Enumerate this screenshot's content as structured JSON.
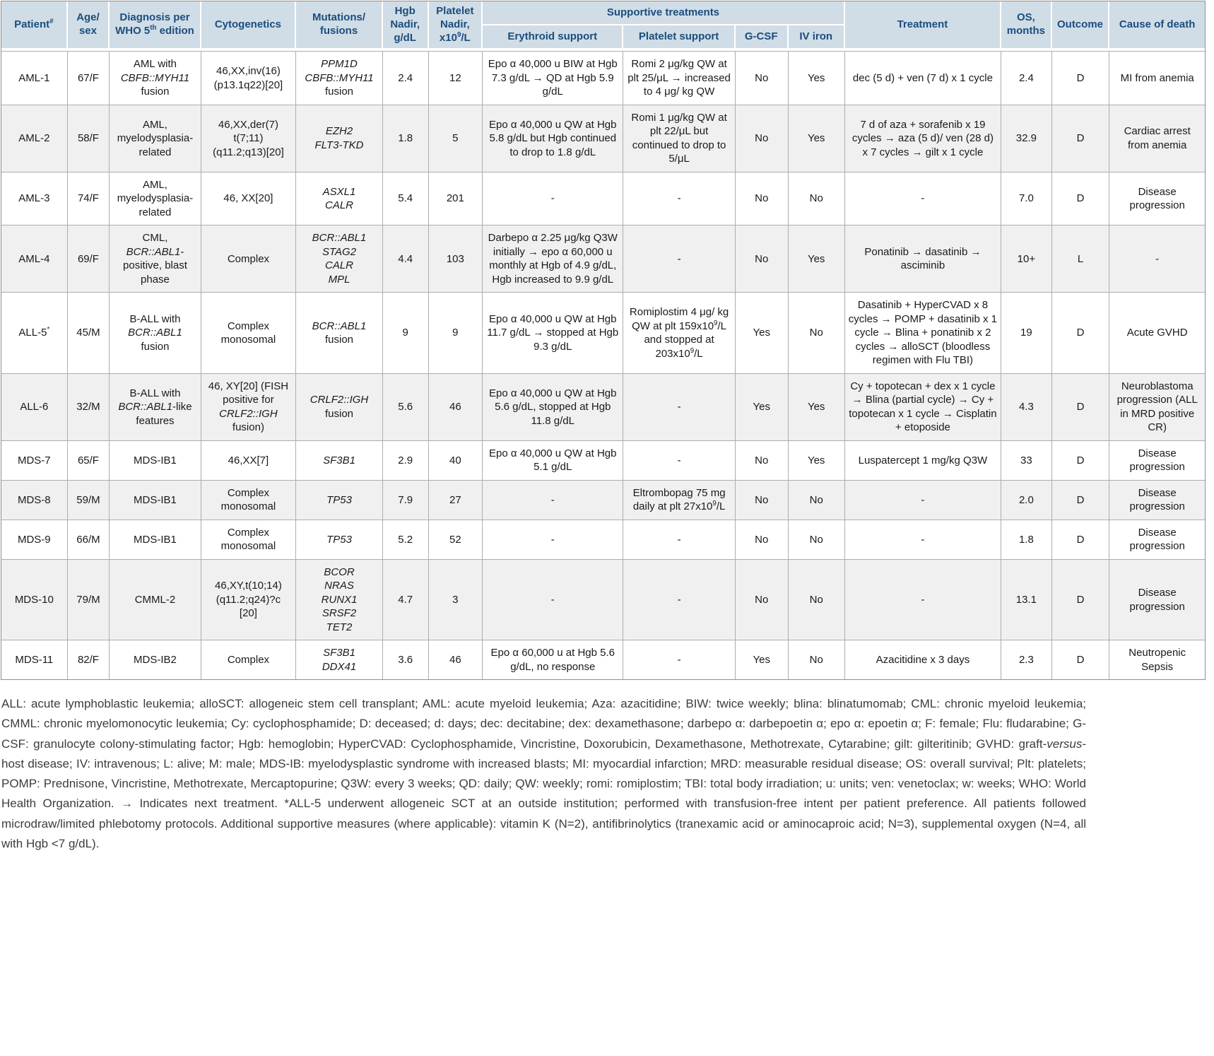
{
  "colors": {
    "header_bg": "#d0dde6",
    "header_text": "#1b4d7d",
    "grid": "#adadad",
    "outer_border": "#8f8f8f",
    "alt_row_bg": "#f0f0f0",
    "footnote_text": "#3c3c3c"
  },
  "table": {
    "header": {
      "patient": "Patient<sup>#</sup>",
      "age_sex": "Age/<br>sex",
      "diagnosis": "Diagnosis per WHO 5<sup>th</sup> edition",
      "cytogenetics": "Cytogenetics",
      "mutations": "Mutations/<br>fusions",
      "hgb_nadir": "Hgb Nadir, g/dL",
      "plt_nadir": "Platelet Nadir, x10<sup>9</sup>/L",
      "supportive": "Supportive treatments",
      "erythroid_support": "Erythroid support",
      "platelet_support": "Platelet support",
      "gcsf": "G-CSF",
      "iv_iron": "IV iron",
      "treatment": "Treatment",
      "os_months": "OS, months",
      "outcome": "Outcome",
      "cause_of_death": "Cause of death"
    },
    "columns_order": [
      "patient",
      "age_sex",
      "diagnosis",
      "cytogenetics",
      "mutations",
      "hgb_nadir",
      "plt_nadir",
      "erythroid_support",
      "platelet_support",
      "gcsf",
      "iv_iron",
      "treatment",
      "os_months",
      "outcome",
      "cause_of_death"
    ],
    "rows": [
      {
        "patient": "AML-1",
        "age_sex": "67/F",
        "diagnosis": "AML with <i>CBFB::MYH11</i> fusion",
        "cytogenetics": "46,XX,inv(16)<br>(p13.1q22)[20]",
        "mutations": "<i>PPM1D</i><br><i>CBFB::MYH11</i> fusion",
        "hgb_nadir": "2.4",
        "plt_nadir": "12",
        "erythroid_support": "Epo α 40,000 u BIW at Hgb 7.3 g/dL → QD at Hgb 5.9 g/dL",
        "platelet_support": "Romi 2 μg/kg QW at plt 25/μL → increased to 4 μg/ kg QW",
        "gcsf": "No",
        "iv_iron": "Yes",
        "treatment": "dec (5 d) + ven (7 d) x 1 cycle",
        "os_months": "2.4",
        "outcome": "D",
        "cause_of_death": "MI from anemia"
      },
      {
        "patient": "AML-2",
        "age_sex": "58/F",
        "diagnosis": "AML, myelodysplasia-related",
        "cytogenetics": "46,XX,der(7)<br>t(7;11)<br>(q11.2;q13)[20]",
        "mutations": "<i>EZH2</i><br><i>FLT3-TKD</i>",
        "hgb_nadir": "1.8",
        "plt_nadir": "5",
        "erythroid_support": "Epo α 40,000 u QW at Hgb 5.8 g/dL but Hgb continued to drop to 1.8 g/dL",
        "platelet_support": "Romi 1 μg/kg QW at plt 22/μL but continued to drop to 5/μL",
        "gcsf": "No",
        "iv_iron": "Yes",
        "treatment": "7 d of aza + sorafenib x 19 cycles → aza (5 d)/ ven (28 d) x 7 cycles → gilt x 1 cycle",
        "os_months": "32.9",
        "outcome": "D",
        "cause_of_death": "Cardiac arrest from anemia"
      },
      {
        "patient": "AML-3",
        "age_sex": "74/F",
        "diagnosis": "AML, myelodysplasia-related",
        "cytogenetics": "46, XX[20]",
        "mutations": "<i>ASXL1</i><br><i>CALR</i>",
        "hgb_nadir": "5.4",
        "plt_nadir": "201",
        "erythroid_support": "-",
        "platelet_support": "-",
        "gcsf": "No",
        "iv_iron": "No",
        "treatment": "-",
        "os_months": "7.0",
        "outcome": "D",
        "cause_of_death": "Disease progression"
      },
      {
        "patient": "AML-4",
        "age_sex": "69/F",
        "diagnosis": "CML, <i>BCR::ABL1</i>-positive, blast phase",
        "cytogenetics": "Complex",
        "mutations": "<i>BCR::ABL1</i><br><i>STAG2</i><br><i>CALR</i><br><i>MPL</i>",
        "hgb_nadir": "4.4",
        "plt_nadir": "103",
        "erythroid_support": "Darbepo α 2.25 μg/kg Q3W initially → epo α 60,000 u monthly at Hgb of 4.9 g/dL, Hgb increased to 9.9 g/dL",
        "platelet_support": "-",
        "gcsf": "No",
        "iv_iron": "Yes",
        "treatment": "Ponatinib → dasatinib → asciminib",
        "os_months": "10+",
        "outcome": "L",
        "cause_of_death": "-"
      },
      {
        "patient": "ALL-5<sup>*</sup>",
        "age_sex": "45/M",
        "diagnosis": "B-ALL with <i>BCR::ABL1</i> fusion",
        "cytogenetics": "Complex monosomal",
        "mutations": "<i>BCR::ABL1</i> fusion",
        "hgb_nadir": "9",
        "plt_nadir": "9",
        "erythroid_support": "Epo α 40,000 u QW at Hgb 11.7 g/dL → stopped at Hgb 9.3 g/dL",
        "platelet_support": "Romiplostim 4 μg/ kg QW at plt 159x10<sup>9</sup>/L and stopped at 203x10<sup>9</sup>/L",
        "gcsf": "Yes",
        "iv_iron": "No",
        "treatment": "Dasatinib + HyperCVAD x 8 cycles → POMP + dasatinib x 1 cycle → Blina + ponatinib x 2 cycles → alloSCT (bloodless regimen with Flu TBI)",
        "os_months": "19",
        "outcome": "D",
        "cause_of_death": "Acute GVHD"
      },
      {
        "patient": "ALL-6",
        "age_sex": "32/M",
        "diagnosis": "B-ALL with <i>BCR::ABL1</i>-like features",
        "cytogenetics": "46, XY[20] (FISH positive for <i>CRLF2::IGH</i> fusion)",
        "mutations": "<i>CRLF2::IGH</i> fusion",
        "hgb_nadir": "5.6",
        "plt_nadir": "46",
        "erythroid_support": "Epo α 40,000 u QW at Hgb 5.6 g/dL, stopped at Hgb 11.8 g/dL",
        "platelet_support": "-",
        "gcsf": "Yes",
        "iv_iron": "Yes",
        "treatment": "Cy + topotecan + dex x 1 cycle → Blina (partial cycle) → Cy + topotecan x 1 cycle → Cisplatin + etoposide",
        "os_months": "4.3",
        "outcome": "D",
        "cause_of_death": "Neuroblastoma progression (ALL in MRD positive CR)"
      },
      {
        "patient": "MDS-7",
        "age_sex": "65/F",
        "diagnosis": "MDS-IB1",
        "cytogenetics": "46,XX[7]",
        "mutations": "<i>SF3B1</i>",
        "hgb_nadir": "2.9",
        "plt_nadir": "40",
        "erythroid_support": "Epo α 40,000 u QW at Hgb 5.1 g/dL",
        "platelet_support": "-",
        "gcsf": "No",
        "iv_iron": "Yes",
        "treatment": "Luspatercept 1 mg/kg Q3W",
        "os_months": "33",
        "outcome": "D",
        "cause_of_death": "Disease progression"
      },
      {
        "patient": "MDS-8",
        "age_sex": "59/M",
        "diagnosis": "MDS-IB1",
        "cytogenetics": "Complex monosomal",
        "mutations": "<i>TP53</i>",
        "hgb_nadir": "7.9",
        "plt_nadir": "27",
        "erythroid_support": "-",
        "platelet_support": "Eltrombopag 75 mg daily at plt 27x10<sup>9</sup>/L",
        "gcsf": "No",
        "iv_iron": "No",
        "treatment": "-",
        "os_months": "2.0",
        "outcome": "D",
        "cause_of_death": "Disease progression"
      },
      {
        "patient": "MDS-9",
        "age_sex": "66/M",
        "diagnosis": "MDS-IB1",
        "cytogenetics": "Complex monosomal",
        "mutations": "<i>TP53</i>",
        "hgb_nadir": "5.2",
        "plt_nadir": "52",
        "erythroid_support": "-",
        "platelet_support": "-",
        "gcsf": "No",
        "iv_iron": "No",
        "treatment": "-",
        "os_months": "1.8",
        "outcome": "D",
        "cause_of_death": "Disease progression"
      },
      {
        "patient": "MDS-10",
        "age_sex": "79/M",
        "diagnosis": "CMML-2",
        "cytogenetics": "46,XY,t(10;14)<br>(q11.2;q24)?c<br>[20]",
        "mutations": "<i>BCOR</i><br><i>NRAS</i><br><i>RUNX1</i><br><i>SRSF2</i><br><i>TET2</i>",
        "hgb_nadir": "4.7",
        "plt_nadir": "3",
        "erythroid_support": "-",
        "platelet_support": "-",
        "gcsf": "No",
        "iv_iron": "No",
        "treatment": "-",
        "os_months": "13.1",
        "outcome": "D",
        "cause_of_death": "Disease progression"
      },
      {
        "patient": "MDS-11",
        "age_sex": "82/F",
        "diagnosis": "MDS-IB2",
        "cytogenetics": "Complex",
        "mutations": "<i>SF3B1</i><br><i>DDX41</i>",
        "hgb_nadir": "3.6",
        "plt_nadir": "46",
        "erythroid_support": "Epo α 60,000 u at Hgb 5.6 g/dL, no response",
        "platelet_support": "-",
        "gcsf": "Yes",
        "iv_iron": "No",
        "treatment": "Azacitidine x 3 days",
        "os_months": "2.3",
        "outcome": "D",
        "cause_of_death": "Neutropenic Sepsis"
      }
    ]
  },
  "footnote": "ALL: acute lymphoblastic leukemia; alloSCT: allogeneic stem cell transplant; AML: acute myeloid leukemia; Aza: azacitidine; BIW: twice weekly; blina: blinatumomab; CML: chronic myeloid leukemia; CMML: chronic myelomonocytic leukemia; Cy: cyclophosphamide; D: deceased; d: days; dec: decitabine; dex: dexamethasone; darbepo α: darbepoetin α; epo α: epoetin α; F: female; Flu: fludarabine; G-CSF: granulocyte colony-stimulating factor; Hgb: hemoglobin; HyperCVAD: Cyclophosphamide, Vincristine, Doxorubicin, Dexamethasone, Methotrexate, Cytarabine; gilt: gilteritinib; GVHD: graft-<i>versus</i>-host disease; IV: intravenous; L: alive; M: male; MDS-IB: myelodysplastic syndrome with increased blasts; MI: myocardial infarction; MRD: measurable residual disease; OS: overall survival; Plt: platelets; POMP: Prednisone, Vincristine, Methotrexate, Mercaptopurine; Q3W: every 3 weeks; QD: daily; QW: weekly; romi: romiplostim; TBI: total body irradiation; u: units; ven: venetoclax; w: weeks; WHO: World Health Organization. → Indicates next treatment. *ALL-5 underwent allogeneic SCT at an outside institution; performed with transfusion-free intent per patient preference. All patients followed microdraw/limited phlebotomy protocols. Additional supportive measures (where applicable): vitamin K (N=2), antifibrinolytics (tranexamic acid or aminocaproic acid; N=3), supplemental oxygen (N=4, all with Hgb &lt;7 g/dL)."
}
